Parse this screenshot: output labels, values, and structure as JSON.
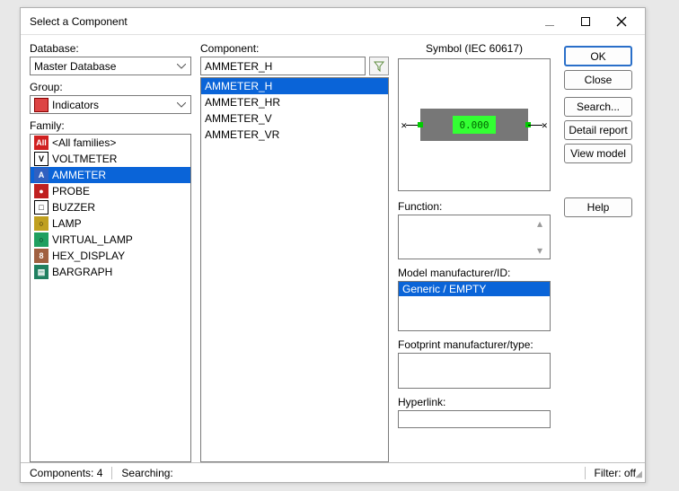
{
  "window": {
    "title": "Select a Component"
  },
  "left": {
    "db_label": "Database:",
    "db_value": "Master Database",
    "group_label": "Group:",
    "group_value": "Indicators",
    "family_label": "Family:",
    "families": [
      {
        "label": "<All families>",
        "icon_bg": "#d02020",
        "icon_txt": "All",
        "icon_fg": "#fff"
      },
      {
        "label": "VOLTMETER",
        "icon_bg": "#ffffff",
        "icon_txt": "V",
        "icon_fg": "#000",
        "border": "#000"
      },
      {
        "label": "AMMETER",
        "icon_bg": "#3060c0",
        "icon_txt": "A",
        "icon_fg": "#fff",
        "selected": true
      },
      {
        "label": "PROBE",
        "icon_bg": "#c02020",
        "icon_txt": "●",
        "icon_fg": "#fff"
      },
      {
        "label": "BUZZER",
        "icon_bg": "#ffffff",
        "icon_txt": "□",
        "icon_fg": "#000",
        "border": "#000"
      },
      {
        "label": "LAMP",
        "icon_bg": "#c0a020",
        "icon_txt": "○",
        "icon_fg": "#000"
      },
      {
        "label": "VIRTUAL_LAMP",
        "icon_bg": "#20a060",
        "icon_txt": "○",
        "icon_fg": "#000"
      },
      {
        "label": "HEX_DISPLAY",
        "icon_bg": "#a06040",
        "icon_txt": "8",
        "icon_fg": "#fff"
      },
      {
        "label": "BARGRAPH",
        "icon_bg": "#208060",
        "icon_txt": "▤",
        "icon_fg": "#fff"
      }
    ]
  },
  "mid": {
    "comp_label": "Component:",
    "search_value": "AMMETER_H",
    "items": [
      {
        "label": "AMMETER_H",
        "selected": true
      },
      {
        "label": "AMMETER_HR"
      },
      {
        "label": "AMMETER_V"
      },
      {
        "label": "AMMETER_VR"
      }
    ]
  },
  "right": {
    "symbol_title": "Symbol (IEC 60617)",
    "lcd_text": "0.000",
    "function_label": "Function:",
    "model_label": "Model manufacturer/ID:",
    "model_value": "Generic / EMPTY",
    "footprint_label": "Footprint manufacturer/type:",
    "hyperlink_label": "Hyperlink:"
  },
  "buttons": {
    "ok": "OK",
    "close": "Close",
    "search": "Search...",
    "detail": "Detail report",
    "view": "View model",
    "help": "Help"
  },
  "status": {
    "left": "Components: 4",
    "mid": "Searching:",
    "right": "Filter: off"
  }
}
